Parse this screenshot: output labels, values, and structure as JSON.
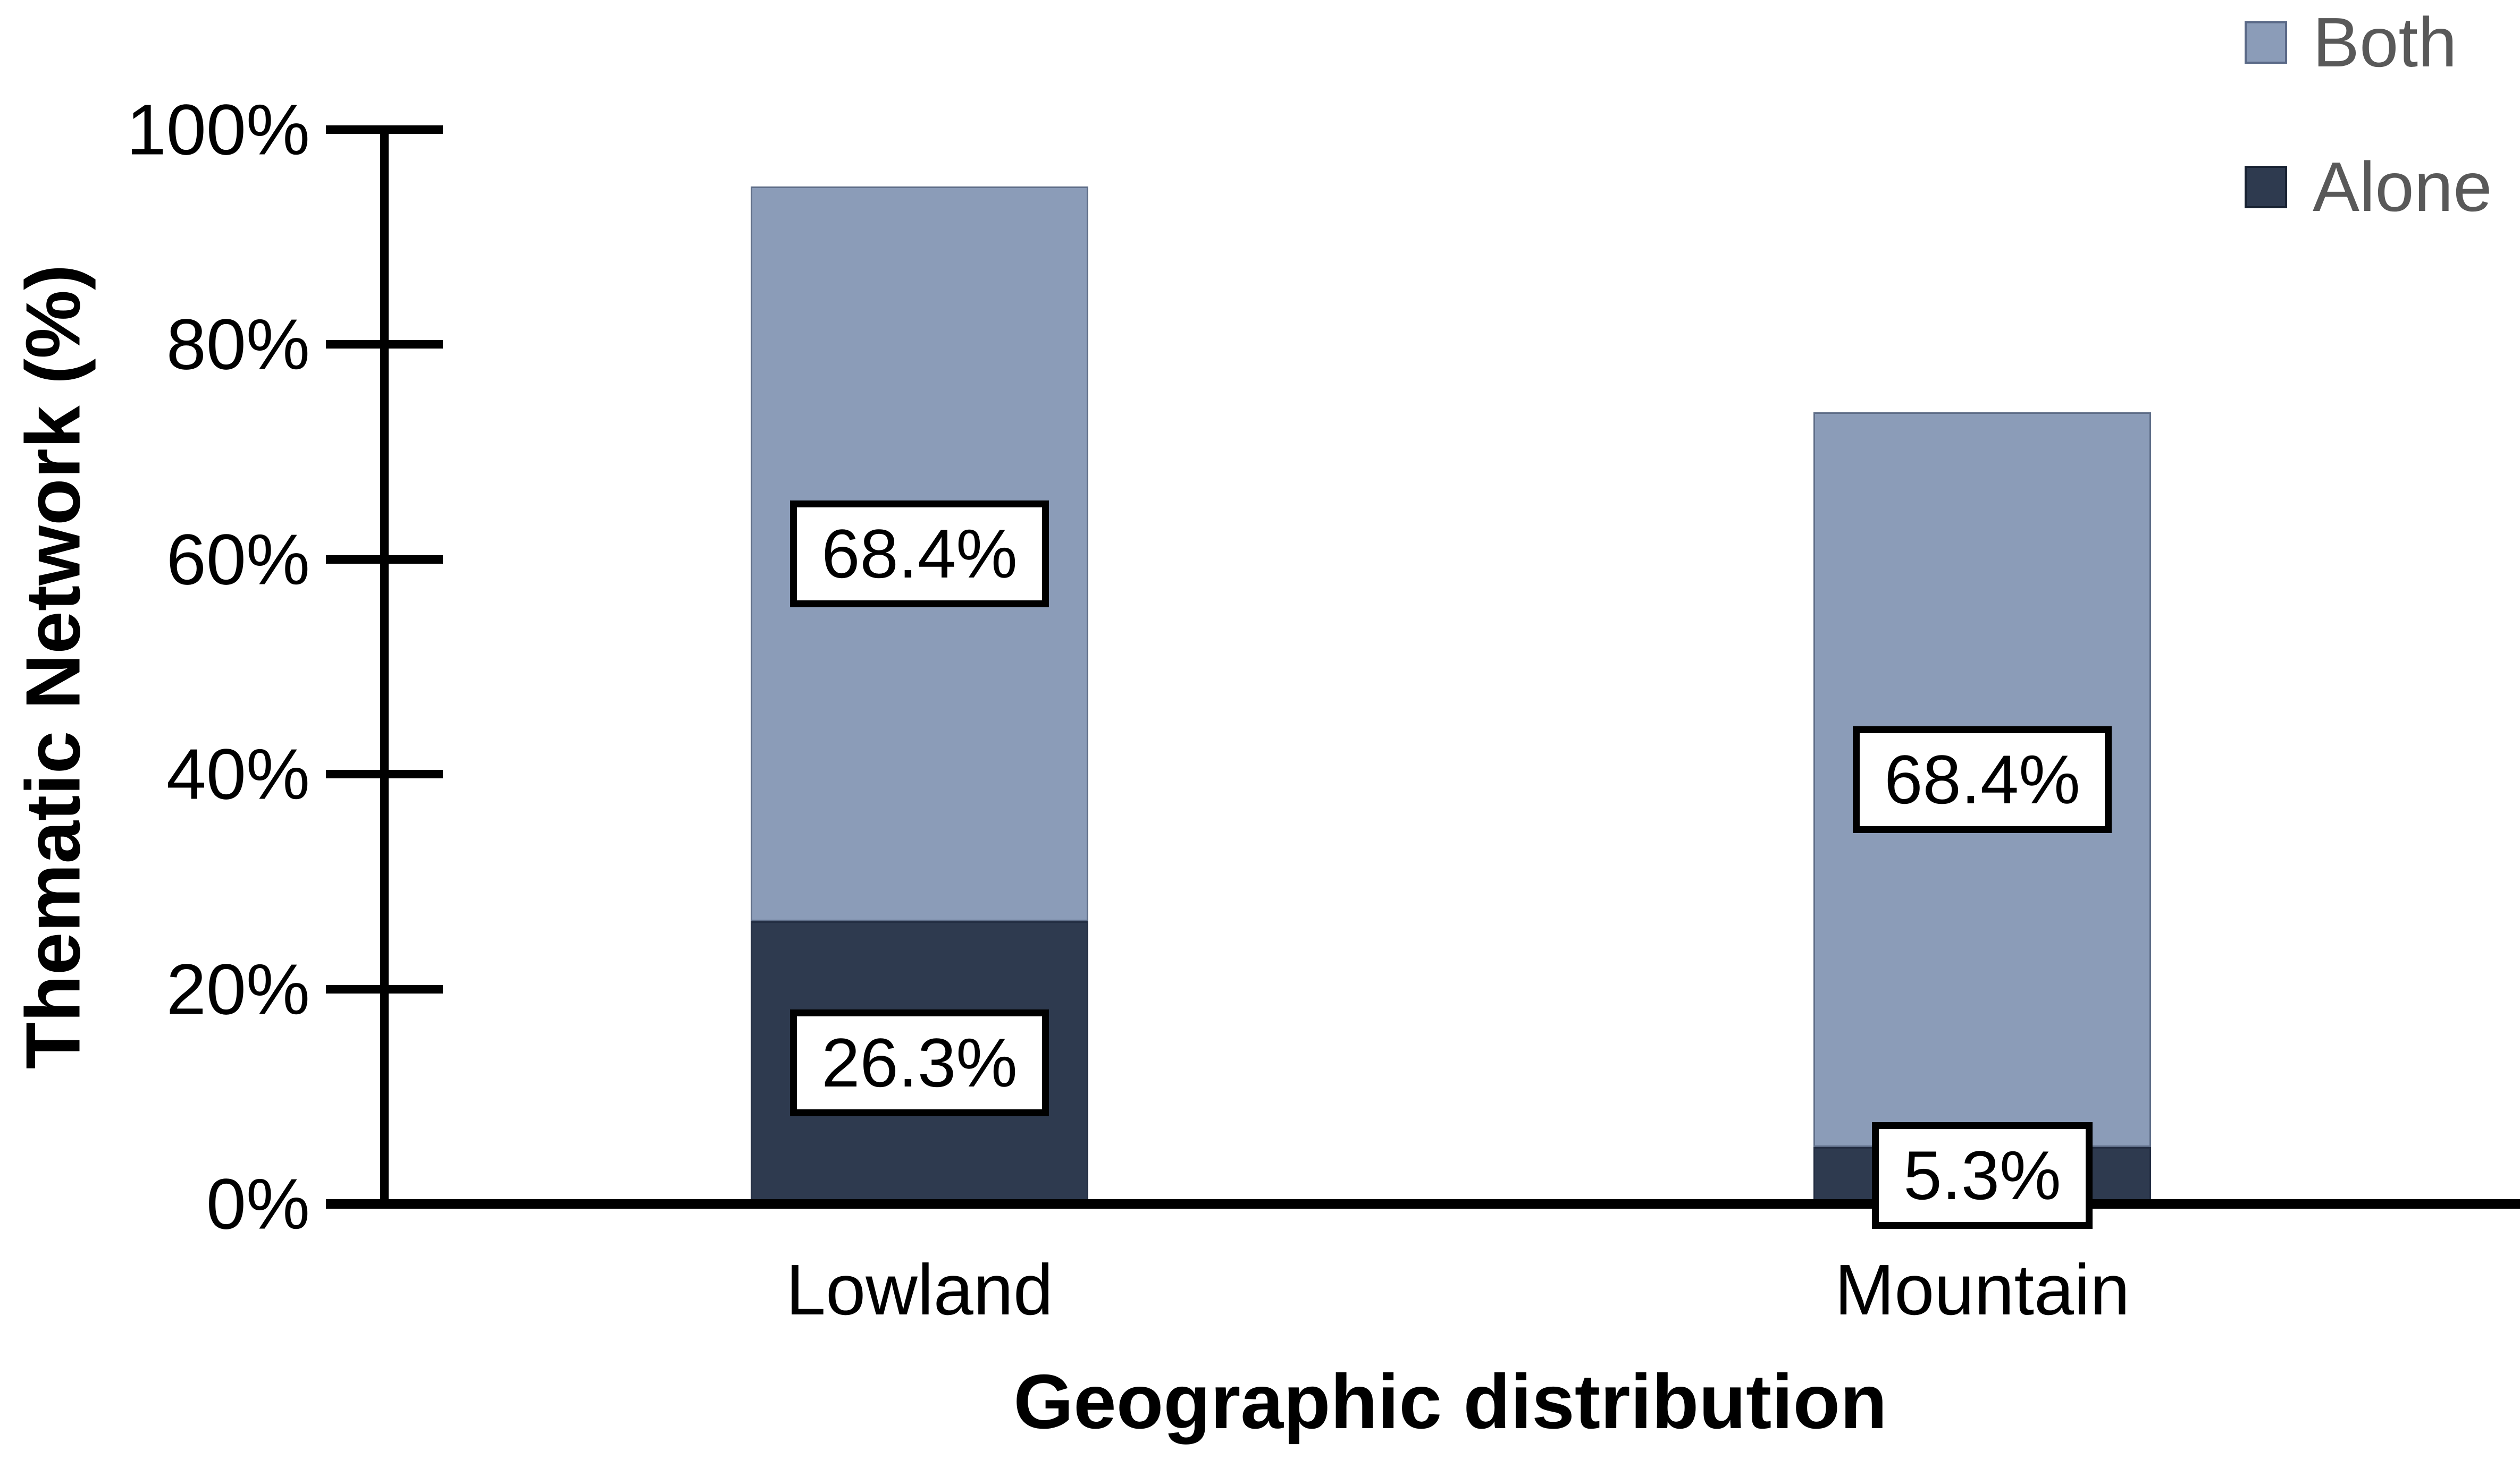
{
  "chart_data": {
    "type": "bar",
    "variant": "stacked-vertical-columns",
    "categories": [
      "Lowland",
      "Mountain"
    ],
    "series": [
      {
        "name": "Alone",
        "color": "#2E3A4F",
        "values": [
          26.3,
          5.3
        ],
        "data_labels": [
          "26.3%",
          "5.3%"
        ]
      },
      {
        "name": "Both",
        "color": "#8B9CB8",
        "values": [
          68.4,
          68.4
        ],
        "data_labels": [
          "68.4%",
          "68.4%"
        ]
      }
    ],
    "stack_totals": [
      94.7,
      73.7
    ],
    "xlabel": "Geographic distribution",
    "ylabel": "Thematic Network (%)",
    "ylim": [
      0,
      100
    ],
    "ytick_values": [
      0,
      20,
      40,
      60,
      80,
      100
    ],
    "yticks": [
      "0%",
      "20%",
      "40%",
      "60%",
      "80%",
      "100%"
    ],
    "grid": false,
    "data_label_style": {
      "background": "#FFFFFF",
      "border_color": "#000000",
      "text_color": "#000000"
    },
    "legend": {
      "position": "top-right",
      "text_color": "#595959",
      "entries": [
        {
          "label": "Both",
          "color": "#8B9CB8"
        },
        {
          "label": "Alone",
          "color": "#2E3A4F"
        }
      ]
    }
  }
}
